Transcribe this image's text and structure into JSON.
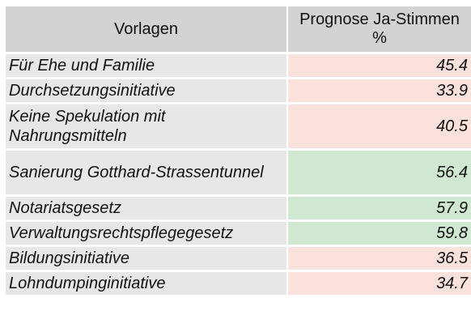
{
  "table": {
    "headers": {
      "vorlagen": "Vorlagen",
      "prognose": "Prognose Ja-Stimmen %"
    },
    "colors": {
      "header_bg": "#d3d3d3",
      "name_bg": "#e7e7e7",
      "below_50": "#fbe1db",
      "above_50": "#d0e8d1"
    },
    "rows": [
      {
        "name": "Für Ehe und Familie",
        "value": "45.4",
        "result": "below_50",
        "lines": 1
      },
      {
        "name": "Durchsetzungsinitiative",
        "value": "33.9",
        "result": "below_50",
        "lines": 1
      },
      {
        "name": "Keine Spekulation mit Nahrungsmitteln",
        "value": "40.5",
        "result": "below_50",
        "lines": 2
      },
      {
        "name": "Sanierung Gotthard-Strassentunnel",
        "value": "56.4",
        "result": "above_50",
        "lines": 2
      },
      {
        "name": "Notariatsgesetz",
        "value": "57.9",
        "result": "above_50",
        "lines": 1
      },
      {
        "name": "Verwaltungsrechtspflegegesetz",
        "value": "59.8",
        "result": "above_50",
        "lines": 1
      },
      {
        "name": "Bildungsinitiative",
        "value": "36.5",
        "result": "below_50",
        "lines": 1
      },
      {
        "name": "Lohndumpinginitiative",
        "value": "34.7",
        "result": "below_50",
        "lines": 1
      }
    ]
  }
}
